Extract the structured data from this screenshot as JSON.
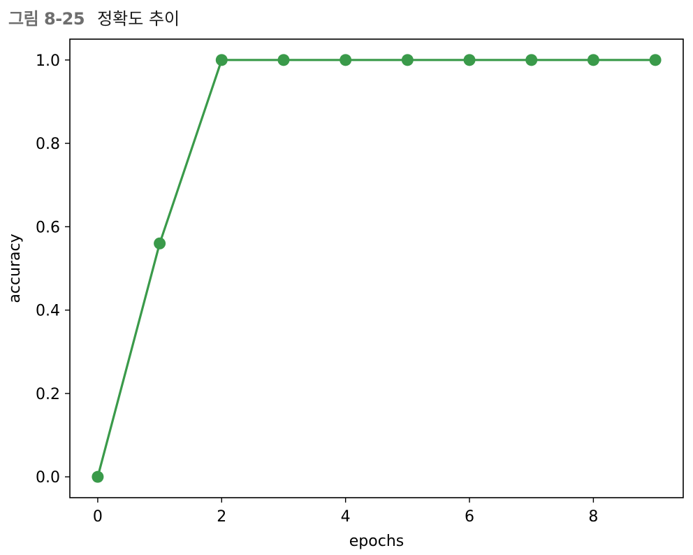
{
  "figure": {
    "label": "그림 8-25",
    "title": "정확도 추이"
  },
  "chart_data": {
    "type": "line",
    "x": [
      0,
      1,
      2,
      3,
      4,
      5,
      6,
      7,
      8,
      9
    ],
    "series": [
      {
        "values": [
          0.0,
          0.56,
          1.0,
          1.0,
          1.0,
          1.0,
          1.0,
          1.0,
          1.0,
          1.0
        ],
        "color": "#3a9a4a",
        "marker": "circle"
      }
    ],
    "xlabel": "epochs",
    "ylabel": "accuracy",
    "xlim": [
      -0.45,
      9.45
    ],
    "ylim": [
      -0.05,
      1.05
    ],
    "xticks": [
      0,
      2,
      4,
      6,
      8
    ],
    "yticks": [
      0.0,
      0.2,
      0.4,
      0.6,
      0.8,
      1.0
    ],
    "grid": false,
    "legend": "none"
  }
}
